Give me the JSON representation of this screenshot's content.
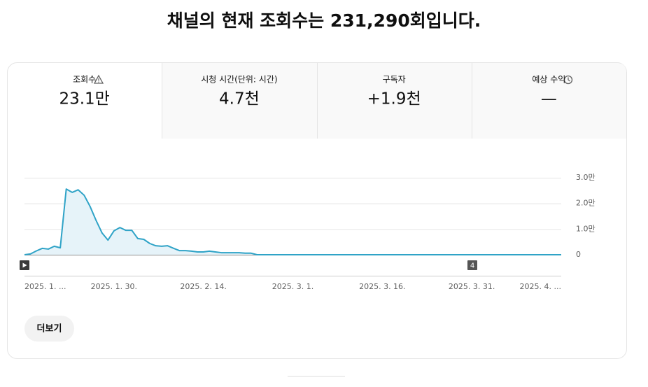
{
  "header": {
    "title": "채널의 현재 조회수는 231,290회입니다."
  },
  "tabs": [
    {
      "label": "조회수",
      "value": "23.1만"
    },
    {
      "label": "시청 시간(단위: 시간)",
      "value": "4.7천"
    },
    {
      "label": "구독자",
      "value": "+1.9천"
    },
    {
      "label": "예상 수익",
      "value": "—"
    }
  ],
  "chart_data": {
    "type": "line",
    "categories": [
      "2025. 1. ...",
      null,
      null,
      null,
      null,
      null,
      null,
      null,
      null,
      null,
      null,
      null,
      null,
      null,
      null,
      "2025. 1. 30.",
      null,
      null,
      null,
      null,
      null,
      null,
      null,
      null,
      null,
      null,
      null,
      null,
      null,
      null,
      "2025. 2. 14.",
      null,
      null,
      null,
      null,
      null,
      null,
      null,
      null,
      null,
      null,
      null,
      null,
      null,
      null,
      "2025. 3. 1.",
      null,
      null,
      null,
      null,
      null,
      null,
      null,
      null,
      null,
      null,
      null,
      null,
      null,
      null,
      "2025. 3. 16.",
      null,
      null,
      null,
      null,
      null,
      null,
      null,
      null,
      null,
      null,
      null,
      null,
      null,
      null,
      "2025. 3. 31.",
      null,
      null,
      null,
      null,
      null,
      null,
      null,
      null,
      null,
      null,
      null,
      null,
      null,
      null,
      "2025. 4. ..."
    ],
    "values": [
      0,
      300,
      1500,
      2500,
      2200,
      3300,
      2700,
      25600,
      24300,
      25300,
      23200,
      18800,
      13400,
      8500,
      5700,
      9300,
      10600,
      9500,
      9500,
      6300,
      6000,
      4400,
      3500,
      3300,
      3500,
      2500,
      1600,
      1600,
      1400,
      1100,
      1100,
      1400,
      1100,
      800,
      800,
      800,
      800,
      600,
      600,
      0,
      0,
      0,
      0,
      0,
      0,
      0,
      0,
      0,
      0,
      0,
      0,
      0,
      0,
      0,
      0,
      0,
      0,
      0,
      0,
      0,
      0,
      0,
      0,
      0,
      0,
      0,
      0,
      0,
      0,
      0,
      0,
      0,
      0,
      0,
      0,
      0,
      0,
      0,
      0,
      0,
      0,
      0,
      0,
      0,
      0,
      0,
      0,
      0,
      0,
      0,
      0
    ],
    "color": "#2fa3c7",
    "ylim": [
      0,
      30000
    ],
    "yticks": [
      0,
      {
        "value": 10000,
        "label": "1.0만"
      },
      {
        "value": 20000,
        "label": "2.0만"
      },
      {
        "value": 30000,
        "label": "3.0만"
      }
    ],
    "grid": true,
    "annotation": "4"
  },
  "more_button": "더보기"
}
